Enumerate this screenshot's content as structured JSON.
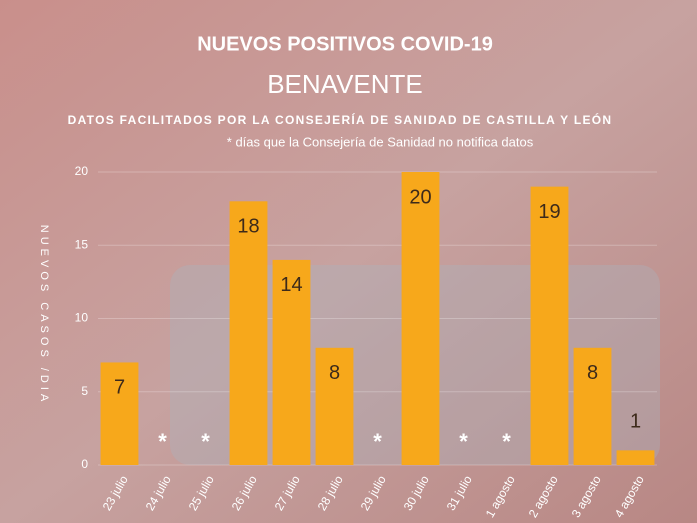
{
  "chart_data": {
    "type": "bar",
    "title": "NUEVOS POSITIVOS COVID-19",
    "subtitle": "BENAVENTE",
    "source": "DATOS FACILITADOS POR LA CONSEJERÍA DE SANIDAD DE CASTILLA Y LEÓN",
    "note": "* días que la Consejería de Sanidad no notifica datos",
    "missing_marker": "*",
    "y_label": "NUEVOS CASOS /DIA",
    "categories": [
      "23 julio",
      "24 julio",
      "25 julio",
      "26 julio",
      "27 julio",
      "28 julio",
      "29 julio",
      "30 julio",
      "31 julio",
      "1 agosto",
      "2 agosto",
      "3 agosto",
      "4 agosto"
    ],
    "values": [
      7,
      null,
      null,
      18,
      14,
      8,
      null,
      20,
      null,
      null,
      19,
      8,
      1
    ],
    "color": "#f7a81b",
    "ylim": [
      0,
      20
    ],
    "yticks": [
      0,
      5,
      10,
      15,
      20
    ],
    "grid": true
  }
}
